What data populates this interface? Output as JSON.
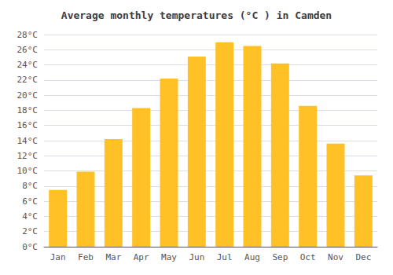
{
  "chart_data": {
    "type": "bar",
    "title": "Average monthly temperatures (°C ) in Camden",
    "categories": [
      "Jan",
      "Feb",
      "Mar",
      "Apr",
      "May",
      "Jun",
      "Jul",
      "Aug",
      "Sep",
      "Oct",
      "Nov",
      "Dec"
    ],
    "values": [
      7.5,
      9.9,
      14.2,
      18.3,
      22.2,
      25.1,
      27.0,
      26.5,
      24.2,
      18.6,
      13.6,
      9.4
    ],
    "color": "#FFC125",
    "ylim": [
      0,
      28
    ],
    "yticks": [
      {
        "value": 0,
        "label": "0°C"
      },
      {
        "value": 2,
        "label": "2°C"
      },
      {
        "value": 4,
        "label": "4°C"
      },
      {
        "value": 6,
        "label": "6°C"
      },
      {
        "value": 8,
        "label": "8°C"
      },
      {
        "value": 10,
        "label": "10°C"
      },
      {
        "value": 12,
        "label": "12°C"
      },
      {
        "value": 14,
        "label": "14°C"
      },
      {
        "value": 16,
        "label": "16°C"
      },
      {
        "value": 18,
        "label": "18°C"
      },
      {
        "value": 20,
        "label": "20°C"
      },
      {
        "value": 22,
        "label": "22°C"
      },
      {
        "value": 24,
        "label": "24°C"
      },
      {
        "value": 26,
        "label": "26°C"
      },
      {
        "value": 28,
        "label": "28°C"
      }
    ],
    "grid": true
  }
}
